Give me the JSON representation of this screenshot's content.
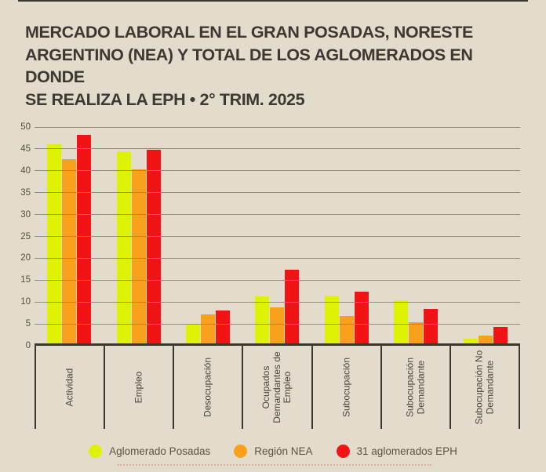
{
  "page": {
    "background": "#e3dccc",
    "title_lines": [
      "MERCADO LABORAL EN EL GRAN POSADAS, NORESTE",
      "ARGENTINO (NEA) Y TOTAL DE LOS AGLOMERADOS EN DONDE",
      "SE REALIZA LA EPH • 2° TRIM. 2025"
    ]
  },
  "chart_data": {
    "type": "bar",
    "title": "MERCADO LABORAL EN EL GRAN POSADAS, NORESTE ARGENTINO (NEA) Y TOTAL DE LOS AGLOMERADOS EN DONDE SE REALIZA LA EPH • 2° TRIM. 2025",
    "categories": [
      "Actividad",
      "Empleo",
      "Desocupación",
      "Ocupados\nDemandantes de\nEmpleo",
      "Subocupación",
      "Subocupación\nDemandante",
      "Subocupación No\nDemandante"
    ],
    "series": [
      {
        "name": "Aglomerado Posadas",
        "color": "#e0f203",
        "values": [
          45.5,
          43.9,
          4.3,
          10.8,
          10.9,
          9.8,
          1.0
        ]
      },
      {
        "name": "Región NEA",
        "color": "#f9a11c",
        "values": [
          42.2,
          39.7,
          6.6,
          8.3,
          6.3,
          4.9,
          1.8
        ]
      },
      {
        "name": "31 aglomerados EPH",
        "color": "#f21414",
        "values": [
          47.6,
          44.3,
          7.5,
          16.8,
          11.8,
          7.9,
          3.8
        ]
      }
    ],
    "xlabel": "",
    "ylabel": "",
    "ylim": [
      0,
      50
    ],
    "ytick_step": 5,
    "grid": true,
    "legend_position": "bottom",
    "colors": {
      "background": "#e3dccc",
      "gridline": "#948c7a",
      "axis": "#3b372d",
      "tick_text": "#544f3e",
      "label_text": "#4a463a",
      "legend_text": "#5a5344",
      "title_text": "#3d3932"
    }
  }
}
